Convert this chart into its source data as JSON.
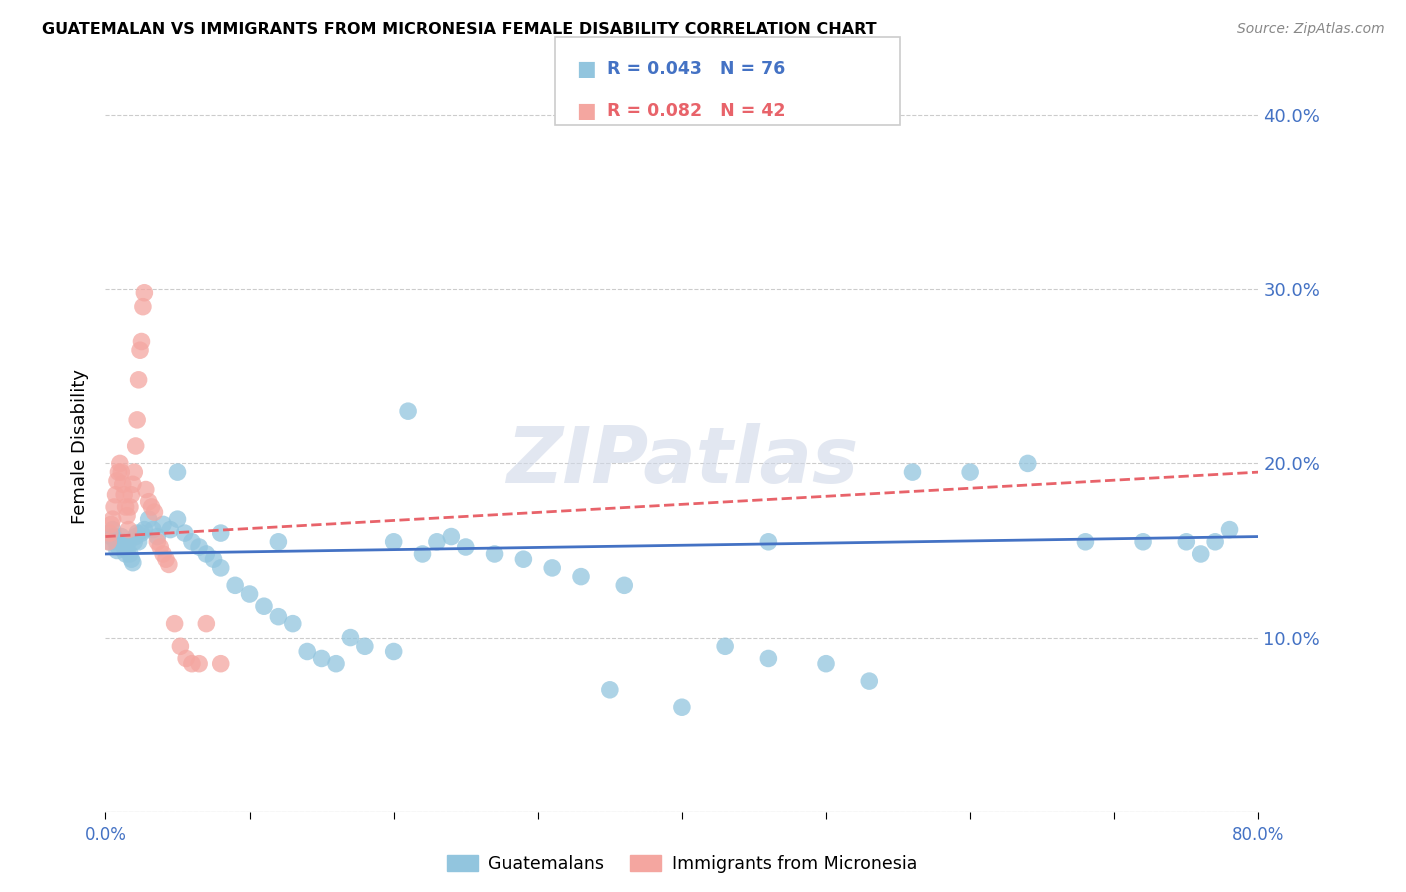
{
  "title": "GUATEMALAN VS IMMIGRANTS FROM MICRONESIA FEMALE DISABILITY CORRELATION CHART",
  "source": "Source: ZipAtlas.com",
  "ylabel": "Female Disability",
  "xlim": [
    0.0,
    0.8
  ],
  "ylim": [
    0.0,
    0.42
  ],
  "xticks": [
    0.0,
    0.1,
    0.2,
    0.3,
    0.4,
    0.5,
    0.6,
    0.7,
    0.8
  ],
  "yticks": [
    0.0,
    0.1,
    0.2,
    0.3,
    0.4
  ],
  "legend_r1": "R = 0.043   N = 76",
  "legend_r2": "R = 0.082   N = 42",
  "legend_label1": "Guatemalans",
  "legend_label2": "Immigrants from Micronesia",
  "blue_color": "#92c5de",
  "pink_color": "#f4a6a0",
  "blue_line_color": "#4472C4",
  "pink_line_color": "#e8636a",
  "axis_color": "#4472C4",
  "watermark": "ZIPatlas",
  "blue_dots_x": [
    0.003,
    0.004,
    0.005,
    0.006,
    0.007,
    0.008,
    0.009,
    0.01,
    0.011,
    0.012,
    0.013,
    0.014,
    0.015,
    0.016,
    0.017,
    0.018,
    0.019,
    0.02,
    0.021,
    0.022,
    0.023,
    0.025,
    0.027,
    0.03,
    0.033,
    0.036,
    0.04,
    0.045,
    0.05,
    0.055,
    0.06,
    0.065,
    0.07,
    0.075,
    0.08,
    0.09,
    0.1,
    0.11,
    0.12,
    0.13,
    0.14,
    0.15,
    0.16,
    0.17,
    0.18,
    0.2,
    0.21,
    0.22,
    0.23,
    0.24,
    0.25,
    0.27,
    0.29,
    0.31,
    0.33,
    0.36,
    0.4,
    0.43,
    0.46,
    0.5,
    0.53,
    0.56,
    0.6,
    0.64,
    0.68,
    0.72,
    0.75,
    0.76,
    0.77,
    0.78,
    0.05,
    0.08,
    0.12,
    0.2,
    0.35,
    0.46
  ],
  "blue_dots_y": [
    0.155,
    0.158,
    0.162,
    0.158,
    0.155,
    0.15,
    0.152,
    0.155,
    0.158,
    0.155,
    0.152,
    0.148,
    0.15,
    0.155,
    0.148,
    0.145,
    0.143,
    0.155,
    0.158,
    0.16,
    0.155,
    0.16,
    0.162,
    0.168,
    0.162,
    0.158,
    0.165,
    0.162,
    0.168,
    0.16,
    0.155,
    0.152,
    0.148,
    0.145,
    0.14,
    0.13,
    0.125,
    0.118,
    0.112,
    0.108,
    0.092,
    0.088,
    0.085,
    0.1,
    0.095,
    0.092,
    0.23,
    0.148,
    0.155,
    0.158,
    0.152,
    0.148,
    0.145,
    0.14,
    0.135,
    0.13,
    0.06,
    0.095,
    0.088,
    0.085,
    0.075,
    0.195,
    0.195,
    0.2,
    0.155,
    0.155,
    0.155,
    0.148,
    0.155,
    0.162,
    0.195,
    0.16,
    0.155,
    0.155,
    0.07,
    0.155
  ],
  "pink_dots_x": [
    0.002,
    0.003,
    0.004,
    0.005,
    0.006,
    0.007,
    0.008,
    0.009,
    0.01,
    0.011,
    0.012,
    0.013,
    0.014,
    0.015,
    0.016,
    0.017,
    0.018,
    0.019,
    0.02,
    0.021,
    0.022,
    0.023,
    0.024,
    0.025,
    0.026,
    0.027,
    0.028,
    0.03,
    0.032,
    0.034,
    0.036,
    0.038,
    0.04,
    0.042,
    0.044,
    0.048,
    0.052,
    0.056,
    0.06,
    0.065,
    0.07,
    0.08
  ],
  "pink_dots_y": [
    0.155,
    0.16,
    0.165,
    0.168,
    0.175,
    0.182,
    0.19,
    0.195,
    0.2,
    0.195,
    0.188,
    0.182,
    0.175,
    0.17,
    0.162,
    0.175,
    0.182,
    0.188,
    0.195,
    0.21,
    0.225,
    0.248,
    0.265,
    0.27,
    0.29,
    0.298,
    0.185,
    0.178,
    0.175,
    0.172,
    0.155,
    0.152,
    0.148,
    0.145,
    0.142,
    0.108,
    0.095,
    0.088,
    0.085,
    0.085,
    0.108,
    0.085
  ],
  "blue_line_x": [
    0.0,
    0.8
  ],
  "blue_line_y": [
    0.148,
    0.158
  ],
  "pink_line_x": [
    0.0,
    0.8
  ],
  "pink_line_y": [
    0.158,
    0.195
  ]
}
